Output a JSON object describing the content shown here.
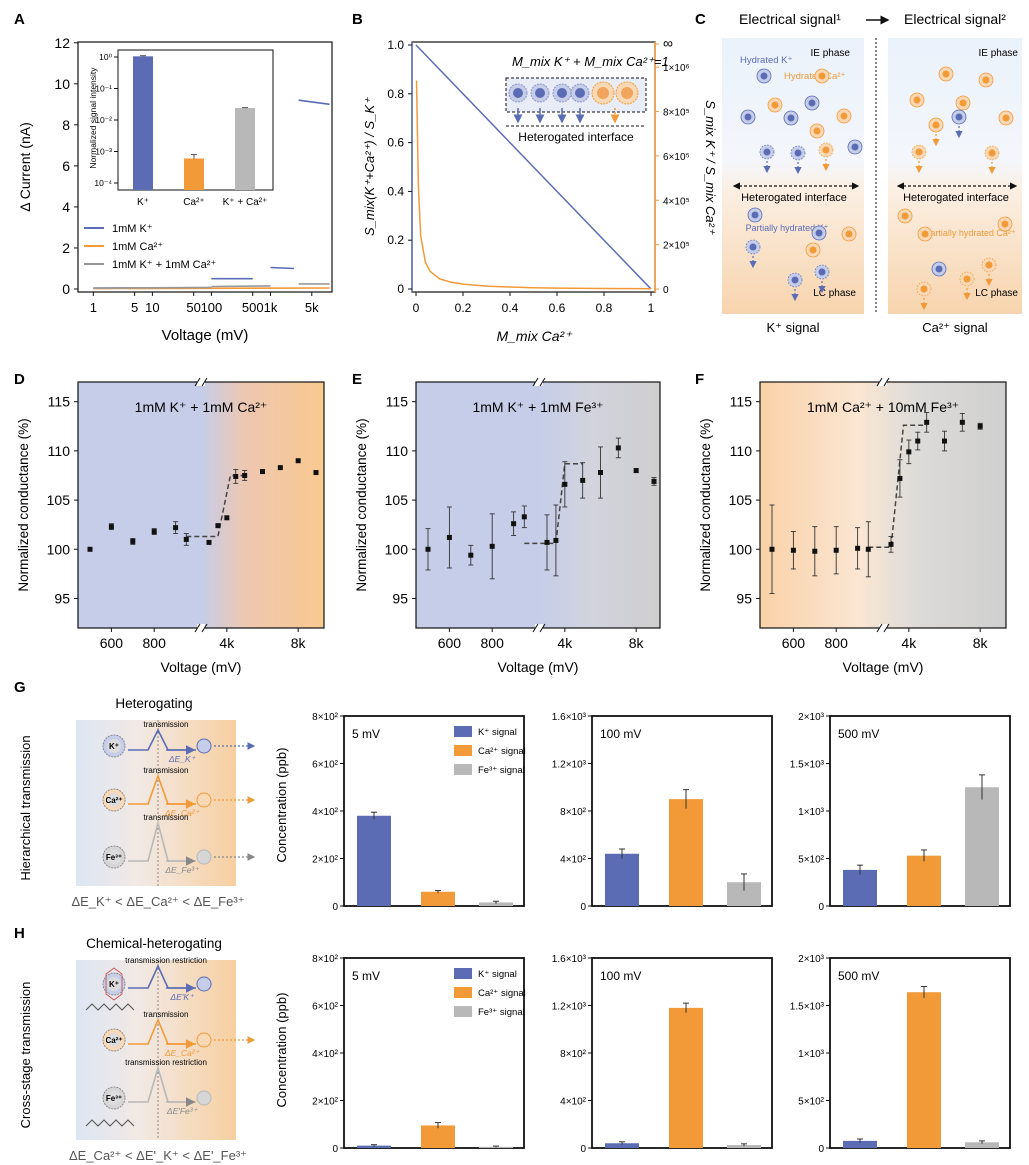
{
  "panel_letters": [
    "A",
    "B",
    "C",
    "D",
    "E",
    "F",
    "G",
    "H"
  ],
  "colors": {
    "k": "#5b6cb5",
    "ca": "#f29a38",
    "fe": "#b8b8b8",
    "k_light": "#c5cde9",
    "ca_light": "#f8cfa0",
    "fe_light": "#d6d6d6",
    "dark": "#333333"
  },
  "panelA": {
    "ylabel": "Δ Current (nA)",
    "xlabel": "Voltage (mV)",
    "xticks": [
      "1",
      "5",
      "10",
      "50",
      "100",
      "500",
      "1k",
      "5k"
    ],
    "yticks": [
      "0",
      "2",
      "4",
      "6",
      "8",
      "10",
      "12"
    ],
    "legend": [
      "1mM K⁺",
      "1mM Ca²⁺",
      "1mM K⁺ + 1mM Ca²⁺"
    ],
    "inset": {
      "ylabel": "Normalized signal intensity",
      "categories": [
        "K⁺",
        "Ca²⁺",
        "K⁺ + Ca²⁺"
      ],
      "values": [
        1.05,
        0.0006,
        0.024
      ],
      "yticks": [
        "10⁰",
        "10⁻¹",
        "10⁻²",
        "10⁻³",
        "10⁻⁴"
      ]
    }
  },
  "panelB": {
    "ylabel_left": "S_mix(K⁺+Ca²⁺) / S_K⁺",
    "ylabel_right": "S_mix K⁺ / S_mix Ca²⁺",
    "xlabel": "M_mix Ca²⁺",
    "xticks": [
      "0",
      "0.2",
      "0.4",
      "0.6",
      "0.8",
      "1"
    ],
    "yticks_left": [
      "0",
      "0.2",
      "0.4",
      "0.6",
      "0.8",
      "1.0"
    ],
    "yticks_right": [
      "0",
      "2×10⁵",
      "4×10⁵",
      "6×10⁵",
      "8×10⁵",
      "1×10⁶",
      "∞"
    ],
    "equation": "M_mix K⁺ + M_mix Ca²⁺=1",
    "interface_label": "Heterogated interface"
  },
  "panelC": {
    "left_title": "Electrical signal¹",
    "right_title": "Electrical signal²",
    "ie_phase": "IE phase",
    "lc_phase": "LC phase",
    "hydrated_k": "Hydrated K⁺",
    "hydrated_ca": "Hydrated Ca²⁺",
    "partial_k": "Partially hydrated K⁺",
    "partial_ca": "Partially hydrated Ca²⁺",
    "interface": "Heterogated interface",
    "left_caption": "K⁺ signal",
    "right_caption": "Ca²⁺ signal"
  },
  "panelsDEF": {
    "ylabel": "Normalized conductance (%)",
    "xlabel": "Voltage (mV)",
    "xticks": [
      "600",
      "800",
      "4k",
      "8k"
    ],
    "yticks": [
      "95",
      "100",
      "105",
      "110",
      "115"
    ],
    "D": {
      "title": "1mM K⁺ + 1mM Ca²⁺"
    },
    "E": {
      "title": "1mM K⁺ + 1mM Fe³⁺"
    },
    "F": {
      "title": "1mM Ca²⁺ + 10mM Fe³⁺"
    }
  },
  "panelG": {
    "side_label": "Hierarchical transmission",
    "title": "Heterogating",
    "transmission": "transmission",
    "delta_k": "ΔE_K⁺",
    "delta_ca": "ΔE_Ca²⁺",
    "delta_fe": "ΔE_Fe³⁺",
    "ineq": "ΔE_K⁺ < ΔE_Ca²⁺ < ΔE_Fe³⁺"
  },
  "panelH": {
    "side_label": "Cross-stage transmission",
    "title": "Chemical-heterogating",
    "transmission": "transmission",
    "restriction": "transmission restriction",
    "ineq": "ΔE_Ca²⁺ < ΔE'_K⁺ < ΔE'_Fe³⁺"
  },
  "bar_common": {
    "ylabel": "Concentration (ppb)",
    "legend": [
      "K⁺ signal",
      "Ca²⁺ signal",
      "Fe³⁺ signal"
    ]
  },
  "chart_data": [
    {
      "id": "A",
      "type": "line",
      "title": "",
      "xlabel": "Voltage (mV)",
      "ylabel": "Δ Current (nA)",
      "ylim": [
        0,
        12
      ],
      "x": [
        "1",
        "5",
        "10",
        "50",
        "100",
        "500",
        "1k",
        "5k"
      ],
      "series": [
        {
          "name": "1mM K⁺",
          "segments": [
            {
              "x": [
                1,
                100
              ],
              "y": [
                0.05,
                0.06
              ]
            },
            {
              "x": [
                100,
                500
              ],
              "y": [
                0.5,
                0.5
              ]
            },
            {
              "x": [
                1000,
                2500
              ],
              "y": [
                1.05,
                1.0
              ]
            },
            {
              "x": [
                3000,
                10000
              ],
              "y": [
                9.2,
                9.0
              ]
            }
          ]
        },
        {
          "name": "1mM Ca²⁺",
          "segments": [
            {
              "x": [
                1,
                10000
              ],
              "y": [
                0.02,
                0.05
              ]
            }
          ]
        },
        {
          "name": "1mM K⁺ + 1mM Ca²⁺",
          "segments": [
            {
              "x": [
                1,
                100
              ],
              "y": [
                0.04,
                0.08
              ]
            },
            {
              "x": [
                100,
                1000
              ],
              "y": [
                0.12,
                0.15
              ]
            },
            {
              "x": [
                3000,
                10000
              ],
              "y": [
                0.25,
                0.25
              ]
            }
          ]
        }
      ]
    },
    {
      "id": "A_inset",
      "type": "bar",
      "ylabel": "Normalized signal intensity",
      "yscale": "log",
      "categories": [
        "K⁺",
        "Ca²⁺",
        "K⁺ + Ca²⁺"
      ],
      "values": [
        1.05,
        0.0006,
        0.024
      ],
      "errors": [
        0.05,
        0.0002,
        0.0008
      ]
    },
    {
      "id": "B",
      "type": "line",
      "xlabel": "M_mix Ca²⁺",
      "ylabel": "S_mix(K⁺+Ca²⁺) / S_K⁺",
      "y2label": "S_mix K⁺ / S_mix Ca²⁺",
      "xlim": [
        0,
        1
      ],
      "ylim": [
        0,
        1
      ],
      "series": [
        {
          "name": "left axis",
          "x": [
            0,
            1
          ],
          "y": [
            1,
            0
          ]
        },
        {
          "name": "right axis",
          "x": [
            0.002,
            0.01,
            0.02,
            0.04,
            0.06,
            0.1,
            0.15,
            0.2,
            0.3,
            0.4,
            0.5,
            0.6,
            0.8,
            1
          ],
          "y": [
            940000,
            460000,
            240000,
            120000,
            80000,
            46000,
            30000,
            22000,
            13000,
            8800,
            6000,
            4200,
            2300,
            1200
          ]
        }
      ]
    },
    {
      "id": "D",
      "type": "scatter",
      "title": "1mM K⁺ + 1mM Ca²⁺",
      "xlabel": "Voltage (mV)",
      "ylabel": "Normalized conductance (%)",
      "ylim": [
        92,
        117
      ],
      "points": [
        [
          500,
          100.0,
          0.1
        ],
        [
          600,
          102.3,
          0.3
        ],
        [
          700,
          100.8,
          0.3
        ],
        [
          800,
          101.8,
          0.3
        ],
        [
          900,
          102.2,
          0.6
        ],
        [
          950,
          101.0,
          0.6
        ],
        [
          3000,
          100.7,
          0.1
        ],
        [
          3500,
          102.4,
          0.1
        ],
        [
          4000,
          103.2,
          0.1
        ],
        [
          4500,
          107.4,
          0.7
        ],
        [
          5000,
          107.5,
          0.5
        ],
        [
          6000,
          107.9,
          0.1
        ],
        [
          7000,
          108.3,
          0.1
        ],
        [
          8000,
          109.0,
          0.1
        ],
        [
          9000,
          107.8,
          0.1
        ]
      ],
      "fit": [
        [
          950,
          101.3
        ],
        [
          3500,
          101.3
        ],
        [
          4200,
          107.5
        ],
        [
          5000,
          107.5
        ]
      ]
    },
    {
      "id": "E",
      "type": "scatter",
      "title": "1mM K⁺ + 1mM Fe³⁺",
      "xlabel": "Voltage (mV)",
      "ylabel": "Normalized conductance (%)",
      "ylim": [
        92,
        117
      ],
      "points": [
        [
          500,
          100.0,
          2.1
        ],
        [
          600,
          101.2,
          3.1
        ],
        [
          700,
          99.4,
          1.0
        ],
        [
          800,
          100.3,
          3.3
        ],
        [
          900,
          102.6,
          1.2
        ],
        [
          950,
          103.3,
          1.1
        ],
        [
          3000,
          100.7,
          2.8
        ],
        [
          3500,
          100.9,
          3.6
        ],
        [
          4000,
          106.6,
          2.3
        ],
        [
          5000,
          107.0,
          1.8
        ],
        [
          6000,
          107.8,
          2.6
        ],
        [
          7000,
          110.3,
          1.0
        ],
        [
          8000,
          108.0,
          0.2
        ],
        [
          9000,
          106.9,
          0.4
        ]
      ],
      "fit": [
        [
          950,
          100.6
        ],
        [
          3500,
          100.6
        ],
        [
          4000,
          108.7
        ],
        [
          5000,
          108.7
        ]
      ]
    },
    {
      "id": "F",
      "type": "scatter",
      "title": "1mM Ca²⁺ + 10mM Fe³⁺",
      "xlabel": "Voltage (mV)",
      "ylabel": "Normalized conductance (%)",
      "ylim": [
        92,
        117
      ],
      "points": [
        [
          500,
          100.0,
          4.5
        ],
        [
          600,
          99.9,
          1.9
        ],
        [
          700,
          99.8,
          2.5
        ],
        [
          800,
          99.9,
          2.4
        ],
        [
          900,
          100.1,
          2.1
        ],
        [
          950,
          100.0,
          2.8
        ],
        [
          3000,
          100.5,
          0.8
        ],
        [
          3500,
          107.2,
          1.9
        ],
        [
          4000,
          109.9,
          1.2
        ],
        [
          4500,
          111.0,
          0.9
        ],
        [
          5000,
          112.9,
          1.0
        ],
        [
          6000,
          111.0,
          1.0
        ],
        [
          7000,
          112.9,
          0.9
        ],
        [
          8000,
          112.5,
          0.3
        ]
      ],
      "fit": [
        [
          950,
          100.2
        ],
        [
          3000,
          100.2
        ],
        [
          3700,
          112.6
        ],
        [
          5000,
          112.6
        ]
      ]
    },
    {
      "id": "G_5mV",
      "type": "bar",
      "label": "5 mV",
      "ylabel": "Concentration (ppb)",
      "ylim": [
        0,
        800
      ],
      "categories": [
        "K⁺ signal",
        "Ca²⁺ signal",
        "Fe³⁺ signal"
      ],
      "values": [
        380,
        60,
        15
      ],
      "errors": [
        15,
        5,
        5
      ],
      "yticks": [
        "0",
        "2×10²",
        "4×10²",
        "6×10²",
        "8×10²"
      ]
    },
    {
      "id": "G_100mV",
      "type": "bar",
      "label": "100 mV",
      "ylim": [
        0,
        1600
      ],
      "categories": [
        "K⁺ signal",
        "Ca²⁺ signal",
        "Fe³⁺ signal"
      ],
      "values": [
        440,
        900,
        200
      ],
      "errors": [
        40,
        80,
        70
      ],
      "yticks": [
        "0",
        "4×10²",
        "8×10²",
        "1.2×10³",
        "1.6×10³"
      ]
    },
    {
      "id": "G_500mV",
      "type": "bar",
      "label": "500 mV",
      "ylim": [
        0,
        2000
      ],
      "categories": [
        "K⁺ signal",
        "Ca²⁺ signal",
        "Fe³⁺ signal"
      ],
      "values": [
        380,
        530,
        1250
      ],
      "errors": [
        50,
        60,
        130
      ],
      "yticks": [
        "0",
        "5×10²",
        "1×10³",
        "1.5×10³",
        "2×10³"
      ]
    },
    {
      "id": "H_5mV",
      "type": "bar",
      "label": "5 mV",
      "ylabel": "Concentration (ppb)",
      "ylim": [
        0,
        800
      ],
      "categories": [
        "K⁺ signal",
        "Ca²⁺ signal",
        "Fe³⁺ signal"
      ],
      "values": [
        10,
        95,
        5
      ],
      "errors": [
        4,
        12,
        3
      ],
      "yticks": [
        "0",
        "2×10²",
        "4×10²",
        "6×10²",
        "8×10²"
      ]
    },
    {
      "id": "H_100mV",
      "type": "bar",
      "label": "100 mV",
      "ylim": [
        0,
        1600
      ],
      "categories": [
        "K⁺ signal",
        "Ca²⁺ signal",
        "Fe³⁺ signal"
      ],
      "values": [
        40,
        1180,
        25
      ],
      "errors": [
        12,
        40,
        10
      ],
      "yticks": [
        "0",
        "4×10²",
        "8×10²",
        "1.2×10³",
        "1.6×10³"
      ]
    },
    {
      "id": "H_500mV",
      "type": "bar",
      "label": "500 mV",
      "ylim": [
        0,
        2000
      ],
      "categories": [
        "K⁺ signal",
        "Ca²⁺ signal",
        "Fe³⁺ signal"
      ],
      "values": [
        75,
        1640,
        60
      ],
      "errors": [
        20,
        60,
        15
      ],
      "yticks": [
        "0",
        "5×10²",
        "1×10³",
        "1.5×10³",
        "2×10³"
      ]
    }
  ]
}
